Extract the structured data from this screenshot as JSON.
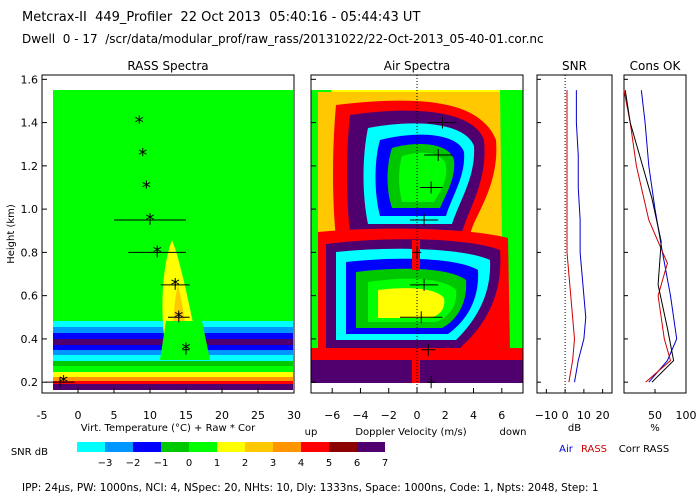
{
  "header": {
    "line1": "Metcrax-II  449_Profiler  22 Oct 2013  05:40:16 - 05:44:43 UT",
    "line2": "Dwell  0 - 17  /scr/data/modular_prof/raw_rass/20131022/22-Oct-2013_05-40-01.cor.nc"
  },
  "footer": "IPP: 24μs, PW: 1000ns, NCI: 4, NSpec: 20, NHts: 10, Dly: 1333ns, Space: 1000ns, Code: 1, Npts: 2048, Step: 1",
  "colors": {
    "scale": [
      "#00ffff",
      "#0096ff",
      "#0000ff",
      "#00c800",
      "#00ff00",
      "#ffff00",
      "#ffc800",
      "#ff9600",
      "#ff0000",
      "#8b0000",
      "#50006e"
    ],
    "air_line": "#0000cc",
    "rass_line": "#cc0000",
    "corr_line": "#000000"
  },
  "chart_data": [
    {
      "type": "scatter",
      "title": "RASS Spectra",
      "ylabel": "Height (km)",
      "xlabel": "Virt. Temperature (°C)  + Raw  * Cor",
      "xlim": [
        -5,
        30
      ],
      "ylim": [
        0.15,
        1.62
      ],
      "xticks": [
        -5,
        0,
        5,
        10,
        15,
        20,
        25,
        30
      ],
      "yticks": [
        0.2,
        0.4,
        0.6,
        0.8,
        1.0,
        1.2,
        1.4,
        1.6
      ],
      "x_tick_labels": [
        "-5",
        "0",
        "5",
        "10",
        "15",
        "20",
        "25",
        "30"
      ],
      "y_tick_labels": [
        "0.2",
        "0.4",
        "0.6",
        "0.8",
        "1.0",
        "1.2",
        "1.4",
        "1.6"
      ],
      "cor_points": [
        {
          "x": 8.5,
          "y": 1.4
        },
        {
          "x": 9.0,
          "y": 1.25
        },
        {
          "x": 9.5,
          "y": 1.1
        },
        {
          "x": 10.0,
          "y": 0.95
        },
        {
          "x": 11.0,
          "y": 0.8
        },
        {
          "x": 13.5,
          "y": 0.65
        },
        {
          "x": 14.0,
          "y": 0.5
        },
        {
          "x": 15.0,
          "y": 0.35
        },
        {
          "x": -2.0,
          "y": 0.2
        }
      ],
      "raw_points": [
        {
          "x": 10.0,
          "y": 0.95,
          "xerr": 5.0
        },
        {
          "x": 11.0,
          "y": 0.8,
          "xerr": 4.0
        },
        {
          "x": 13.5,
          "y": 0.65,
          "xerr": 2.0
        },
        {
          "x": 14.0,
          "y": 0.5,
          "xerr": 1.5
        },
        {
          "x": 15.0,
          "y": 0.35,
          "xerr": 0.5
        },
        {
          "x": -2.5,
          "y": 0.2,
          "xerr": 2.0
        }
      ]
    },
    {
      "type": "heatmap",
      "title": "Air Spectra",
      "xlabel": "Doppler Velocity (m/s)",
      "xlabel_left": "up",
      "xlabel_right": "down",
      "xlim": [
        -7.5,
        7.5
      ],
      "ylim": [
        0.15,
        1.62
      ],
      "xticks": [
        -6,
        -4,
        -2,
        0,
        2,
        4,
        6
      ],
      "x_tick_labels": [
        "−6",
        "−4",
        "−2",
        "0",
        "2",
        "4",
        "6"
      ],
      "peaks": [
        {
          "x": 1.8,
          "y": 1.4,
          "xerr": 1.0
        },
        {
          "x": 1.5,
          "y": 1.25,
          "xerr": 1.0
        },
        {
          "x": 1.0,
          "y": 1.1,
          "xerr": 0.8
        },
        {
          "x": 0.5,
          "y": 0.95,
          "xerr": 1.0
        },
        {
          "x": 0.0,
          "y": 0.8,
          "xerr": 0.3
        },
        {
          "x": 0.5,
          "y": 0.65,
          "xerr": 1.0
        },
        {
          "x": 0.3,
          "y": 0.5,
          "xerr": 1.5
        },
        {
          "x": 0.8,
          "y": 0.35,
          "xerr": 0.5
        },
        {
          "x": 1.0,
          "y": 0.2,
          "xerr": 0.3
        }
      ]
    },
    {
      "type": "line",
      "title": "SNR",
      "xlabel": "dB",
      "xlim": [
        -15,
        25
      ],
      "xticks": [
        -10,
        0,
        10,
        20
      ],
      "x_tick_labels": [
        "−10",
        "0",
        "10",
        "20"
      ],
      "series": [
        {
          "name": "Air",
          "points": [
            [
              6,
              1.55
            ],
            [
              6,
              1.4
            ],
            [
              7,
              1.25
            ],
            [
              7,
              1.1
            ],
            [
              8,
              0.95
            ],
            [
              8,
              0.8
            ],
            [
              9,
              0.7
            ],
            [
              10,
              0.6
            ],
            [
              11,
              0.5
            ],
            [
              10,
              0.4
            ],
            [
              7,
              0.3
            ],
            [
              5,
              0.2
            ]
          ]
        },
        {
          "name": "RASS",
          "points": [
            [
              1,
              1.55
            ],
            [
              1,
              1.4
            ],
            [
              1,
              1.25
            ],
            [
              1,
              1.1
            ],
            [
              1,
              0.95
            ],
            [
              1,
              0.8
            ],
            [
              2,
              0.7
            ],
            [
              3,
              0.6
            ],
            [
              4,
              0.5
            ],
            [
              5,
              0.4
            ],
            [
              4,
              0.3
            ],
            [
              2,
              0.2
            ]
          ]
        }
      ]
    },
    {
      "type": "line",
      "title": "Cons OK",
      "xlabel": "%",
      "xlim": [
        0,
        100
      ],
      "xticks": [
        50,
        100
      ],
      "x_tick_labels": [
        "50",
        "100"
      ],
      "series": [
        {
          "name": "Air",
          "points": [
            [
              28,
              1.55
            ],
            [
              34,
              1.4
            ],
            [
              40,
              1.2
            ],
            [
              50,
              1.0
            ],
            [
              62,
              0.8
            ],
            [
              75,
              0.6
            ],
            [
              85,
              0.4
            ],
            [
              70,
              0.3
            ],
            [
              40,
              0.2
            ]
          ]
        },
        {
          "name": "RASS",
          "points": [
            [
              0,
              1.55
            ],
            [
              10,
              1.4
            ],
            [
              20,
              1.2
            ],
            [
              40,
              0.95
            ],
            [
              70,
              0.75
            ],
            [
              55,
              0.6
            ],
            [
              65,
              0.4
            ],
            [
              75,
              0.3
            ],
            [
              35,
              0.2
            ]
          ]
        },
        {
          "name": "Corr RASS",
          "points": [
            [
              2,
              1.55
            ],
            [
              10,
              1.4
            ],
            [
              30,
              1.2
            ],
            [
              45,
              1.05
            ],
            [
              60,
              0.85
            ],
            [
              55,
              0.65
            ],
            [
              70,
              0.45
            ],
            [
              80,
              0.3
            ],
            [
              45,
              0.2
            ]
          ]
        }
      ]
    }
  ],
  "legend": {
    "snr_label": "SNR dB",
    "ticks": [
      "−3",
      "−2",
      "−1",
      "0",
      "1",
      "2",
      "3",
      "4",
      "5",
      "6",
      "7"
    ],
    "line_legend": {
      "air": "Air",
      "rass": "RASS",
      "corr": "Corr RASS"
    }
  }
}
